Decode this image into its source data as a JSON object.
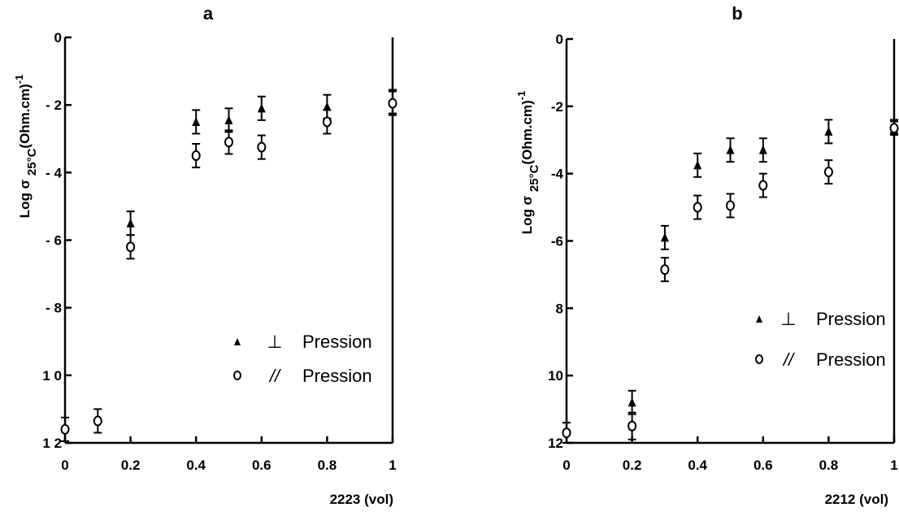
{
  "chart_data": [
    {
      "type": "scatter",
      "title": "a",
      "ylabel": "Log σ 25°C(Ohm.cm)-1",
      "ylabel_parts": {
        "base": "Log σ ",
        "sub": "25°C",
        "unit": "(Ohm.cm)",
        "sup": "-1"
      },
      "xlabel": "2223  (vol)",
      "xlim": [
        0,
        1
      ],
      "ylim": [
        -12,
        0
      ],
      "grid": false,
      "legend_position": "bottom-right",
      "x_tick_labels": [
        "0",
        "0.2",
        "0.4",
        "0.6",
        "0.8",
        "1"
      ],
      "x_ticks": [
        0,
        0.2,
        0.4,
        0.6,
        0.8,
        1
      ],
      "y_tick_labels": [
        "0",
        "- 2",
        "- 4",
        "- 6",
        "- 8",
        "1 0",
        "1 2"
      ],
      "y_ticks": [
        0,
        -2,
        -4,
        -6,
        -8,
        -10,
        -12
      ],
      "series": [
        {
          "name": "⊥ Pression",
          "legend_symbol": "⊥",
          "legend_text": "Pression",
          "marker": "triangle",
          "points": [
            {
              "x": 0.2,
              "y": -5.5,
              "err": 0.35
            },
            {
              "x": 0.4,
              "y": -2.5,
              "err": 0.35
            },
            {
              "x": 0.5,
              "y": -2.45,
              "err": 0.35
            },
            {
              "x": 0.6,
              "y": -2.1,
              "err": 0.35
            },
            {
              "x": 0.8,
              "y": -2.05,
              "err": 0.35
            },
            {
              "x": 1.0,
              "y": -1.9,
              "err": 0.35
            }
          ]
        },
        {
          "name": "// Pression",
          "legend_symbol": "//",
          "legend_text": "Pression",
          "marker": "circle",
          "points": [
            {
              "x": 0.0,
              "y": -11.6,
              "err": 0.35
            },
            {
              "x": 0.1,
              "y": -11.35,
              "err": 0.35
            },
            {
              "x": 0.2,
              "y": -6.2,
              "err": 0.35
            },
            {
              "x": 0.4,
              "y": -3.5,
              "err": 0.35
            },
            {
              "x": 0.5,
              "y": -3.1,
              "err": 0.35
            },
            {
              "x": 0.6,
              "y": -3.25,
              "err": 0.35
            },
            {
              "x": 0.8,
              "y": -2.5,
              "err": 0.35
            },
            {
              "x": 1.0,
              "y": -1.95,
              "err": 0.35
            }
          ]
        }
      ]
    },
    {
      "type": "scatter",
      "title": "b",
      "ylabel": "Log σ 25°C(Ohm.cm)-1",
      "ylabel_parts": {
        "base": "Log σ ",
        "sub": "25°C",
        "unit": "(Ohm.cm)",
        "sup": "-1"
      },
      "xlabel": "2212  (vol)",
      "xlim": [
        0,
        1
      ],
      "ylim": [
        -12,
        0
      ],
      "grid": false,
      "legend_position": "bottom-right",
      "x_tick_labels": [
        "0",
        "0.2",
        "0.4",
        "0.6",
        "0.8",
        "1"
      ],
      "x_ticks": [
        0,
        0.2,
        0.4,
        0.6,
        0.8,
        1
      ],
      "y_tick_labels": [
        "0",
        "-2",
        "-4",
        "-6",
        "8",
        "10",
        "12"
      ],
      "y_ticks": [
        0,
        -2,
        -4,
        -6,
        -8,
        -10,
        -12
      ],
      "series": [
        {
          "name": "⊥ Pression",
          "legend_symbol": "⊥",
          "legend_text": "Pression",
          "marker": "triangle",
          "points": [
            {
              "x": 0.2,
              "y": -10.8,
              "err": 0.35
            },
            {
              "x": 0.3,
              "y": -5.9,
              "err": 0.35
            },
            {
              "x": 0.4,
              "y": -3.75,
              "err": 0.35
            },
            {
              "x": 0.5,
              "y": -3.3,
              "err": 0.35
            },
            {
              "x": 0.6,
              "y": -3.3,
              "err": 0.35
            },
            {
              "x": 0.8,
              "y": -2.75,
              "err": 0.35
            },
            {
              "x": 1.0,
              "y": -2.6,
              "err": 0.2
            }
          ]
        },
        {
          "name": "// Pression",
          "legend_symbol": "//",
          "legend_text": "Pression",
          "marker": "circle",
          "points": [
            {
              "x": 0.0,
              "y": -11.7,
              "err": 0.3
            },
            {
              "x": 0.2,
              "y": -11.5,
              "err": 0.4
            },
            {
              "x": 0.3,
              "y": -6.85,
              "err": 0.35
            },
            {
              "x": 0.4,
              "y": -5.0,
              "err": 0.35
            },
            {
              "x": 0.5,
              "y": -4.95,
              "err": 0.35
            },
            {
              "x": 0.6,
              "y": -4.35,
              "err": 0.35
            },
            {
              "x": 0.8,
              "y": -3.95,
              "err": 0.35
            },
            {
              "x": 1.0,
              "y": -2.65,
              "err": 0.2
            }
          ]
        }
      ]
    }
  ]
}
